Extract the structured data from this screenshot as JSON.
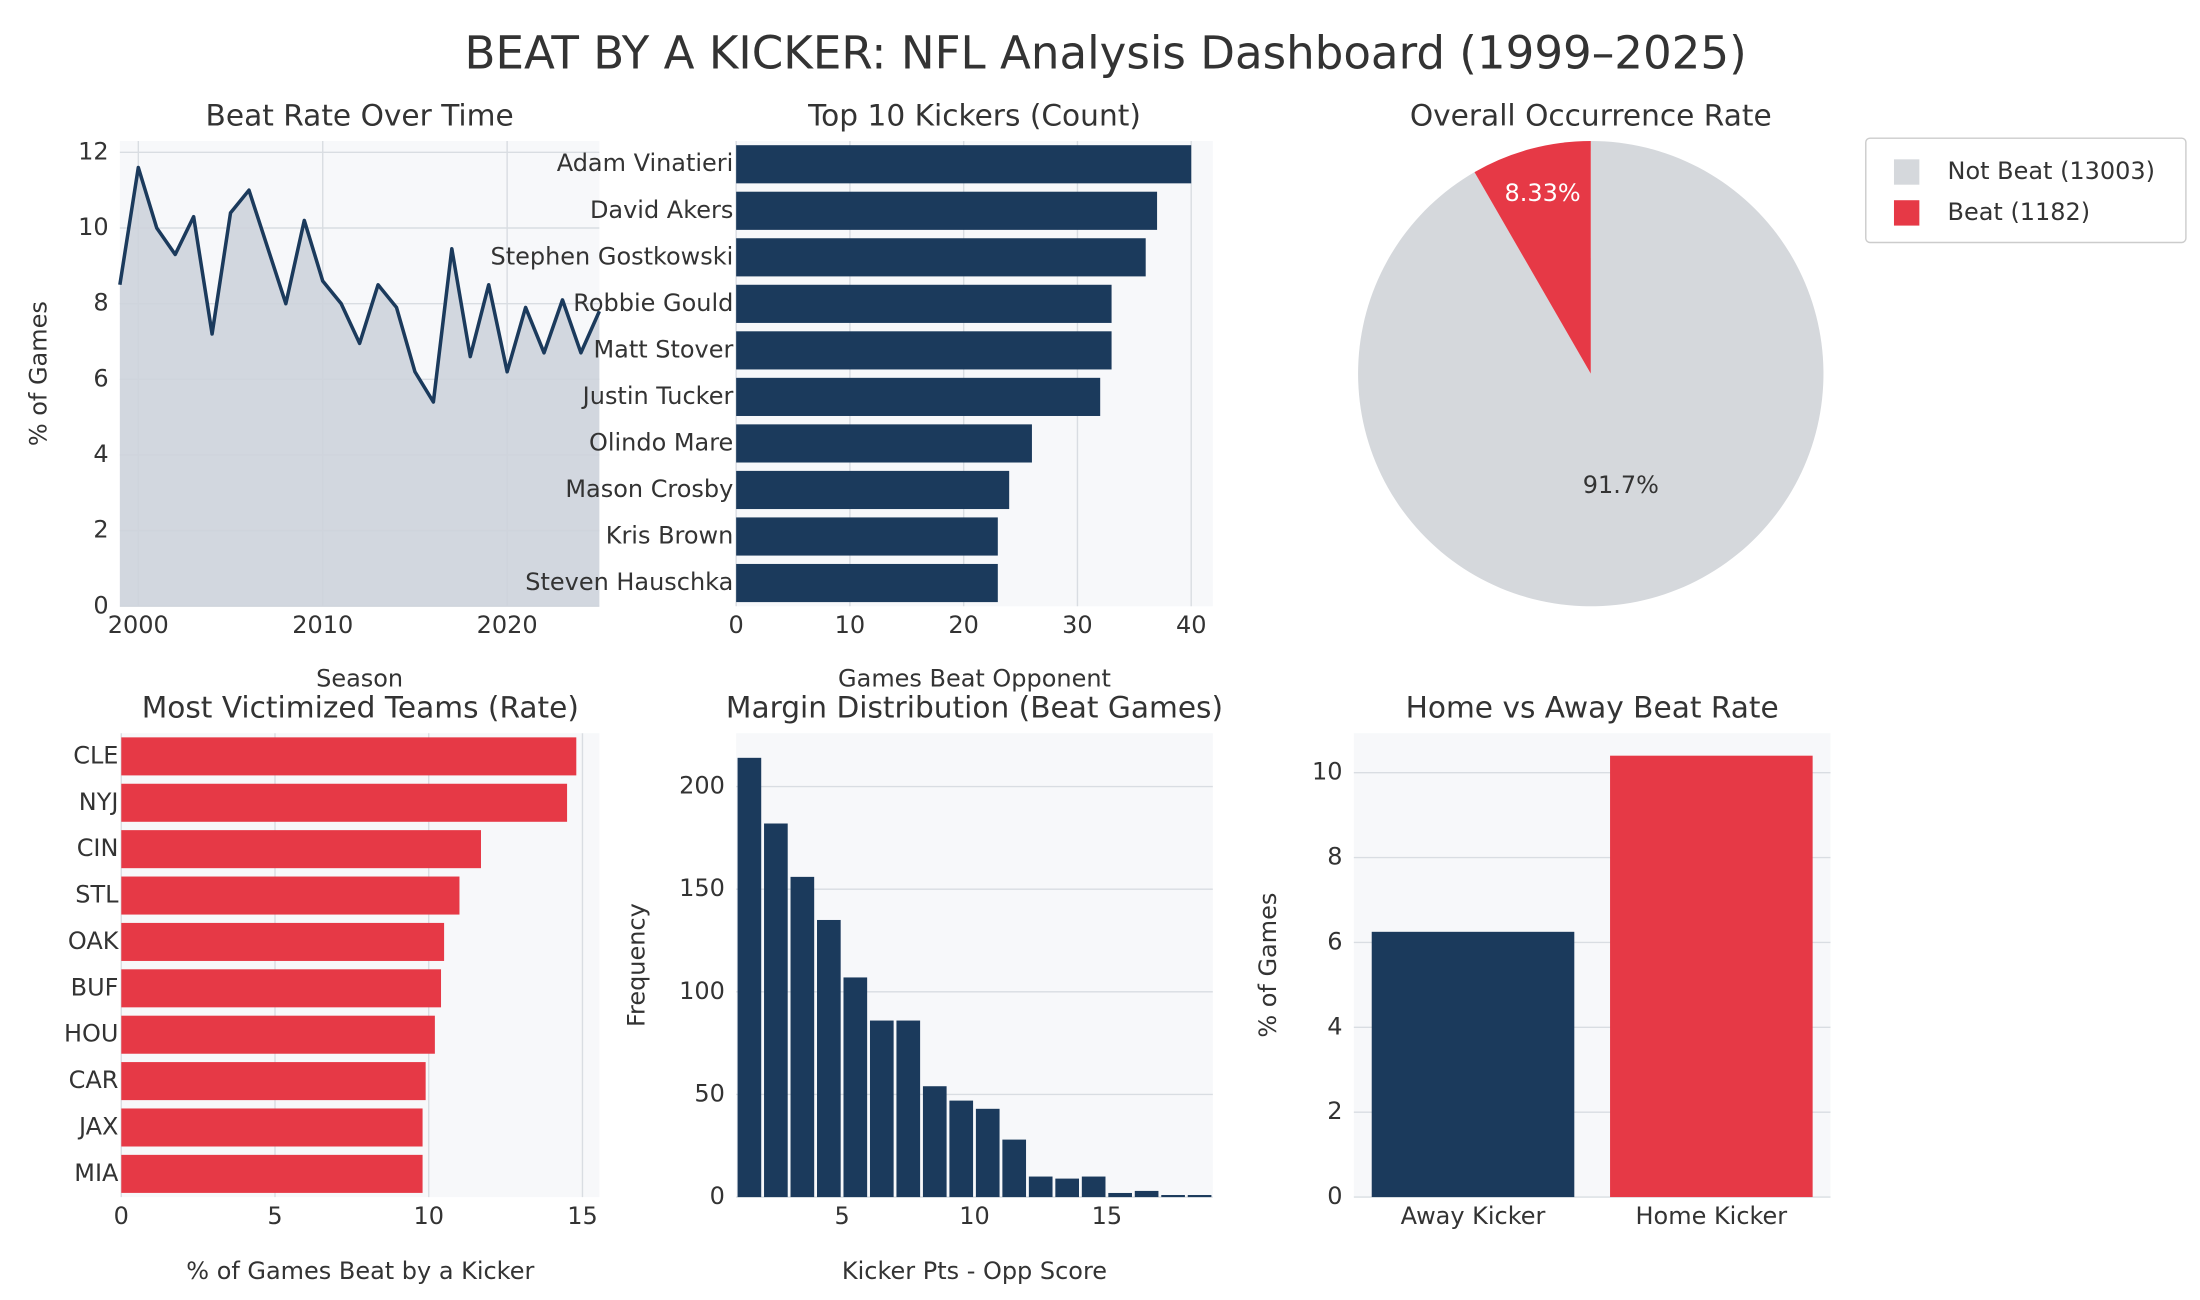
{
  "title": "BEAT BY A KICKER: NFL Analysis Dashboard (1999–2025)",
  "chart_data": [
    {
      "type": "line",
      "title": "Beat Rate Over Time",
      "xlabel": "Season",
      "ylabel": "% of Games",
      "x": [
        1999,
        2000,
        2001,
        2002,
        2003,
        2004,
        2005,
        2006,
        2007,
        2008,
        2009,
        2010,
        2011,
        2012,
        2013,
        2014,
        2015,
        2016,
        2017,
        2018,
        2019,
        2020,
        2021,
        2022,
        2023,
        2024,
        2025
      ],
      "values": [
        8.5,
        11.6,
        10.0,
        9.3,
        10.3,
        7.2,
        10.4,
        11.0,
        9.5,
        8.0,
        10.2,
        8.6,
        8.0,
        6.95,
        8.5,
        7.9,
        6.2,
        5.4,
        9.45,
        6.6,
        8.5,
        6.2,
        7.9,
        6.7,
        8.1,
        6.7,
        7.8
      ],
      "color": "#1b3a5c",
      "fill": "#cdd3db",
      "xlim": [
        1999,
        2025
      ],
      "xticks": [
        2000,
        2010,
        2020
      ],
      "ylim": [
        0,
        12.3
      ],
      "yticks": [
        0,
        2,
        4,
        6,
        8,
        10,
        12
      ],
      "grid": "both"
    },
    {
      "type": "bar",
      "orientation": "horizontal",
      "title": "Top 10 Kickers (Count)",
      "xlabel": "Games Beat Opponent",
      "categories": [
        "Adam Vinatieri",
        "David Akers",
        "Stephen Gostkowski",
        "Robbie Gould",
        "Matt Stover",
        "Justin Tucker",
        "Olindo Mare",
        "Mason Crosby",
        "Kris Brown",
        "Steven Hauschka"
      ],
      "values": [
        40,
        37,
        36,
        33,
        33,
        32,
        26,
        24,
        23,
        23
      ],
      "color": "#1b3a5c",
      "xlim": [
        0,
        41.9
      ],
      "xticks": [
        0,
        10,
        20,
        30,
        40
      ],
      "grid": "x"
    },
    {
      "type": "pie",
      "title": "Overall Occurrence Rate",
      "categories": [
        "Not Beat (13003)",
        "Beat (1182)"
      ],
      "values": [
        91.7,
        8.33
      ],
      "value_labels": [
        "91.7%",
        "8.33%"
      ],
      "colors": [
        "#d5d8dc",
        "#e63946"
      ],
      "legend": "upper-right"
    },
    {
      "type": "bar",
      "orientation": "horizontal",
      "title": "Most Victimized Teams (Rate)",
      "xlabel": "% of Games Beat by a Kicker",
      "categories": [
        "CLE",
        "NYJ",
        "CIN",
        "STL",
        "OAK",
        "BUF",
        "HOU",
        "CAR",
        "JAX",
        "MIA"
      ],
      "values": [
        14.8,
        14.5,
        11.7,
        11.0,
        10.5,
        10.4,
        10.2,
        9.9,
        9.8,
        9.8
      ],
      "color": "#e63946",
      "xlim": [
        0,
        15.55
      ],
      "xticks": [
        0,
        5,
        10,
        15
      ],
      "grid": "x"
    },
    {
      "type": "histogram",
      "title": "Margin Distribution (Beat Games)",
      "xlabel": "Kicker Pts - Opp Score",
      "ylabel": "Frequency",
      "bins": [
        1,
        2,
        3,
        4,
        5,
        6,
        7,
        8,
        9,
        10,
        11,
        12,
        13,
        14,
        15,
        16,
        17,
        18,
        19
      ],
      "values": [
        214,
        182,
        156,
        135,
        107,
        86,
        86,
        54,
        47,
        43,
        28,
        10,
        9,
        10,
        2,
        3,
        1,
        1
      ],
      "color": "#1b3a5c",
      "xlim": [
        1,
        19
      ],
      "xticks": [
        5,
        10,
        15
      ],
      "ylim": [
        0,
        226
      ],
      "yticks": [
        0,
        50,
        100,
        150,
        200
      ],
      "grid": "y"
    },
    {
      "type": "bar",
      "orientation": "vertical",
      "title": "Home vs Away Beat Rate",
      "ylabel": "% of Games",
      "categories": [
        "Away Kicker",
        "Home Kicker"
      ],
      "values": [
        6.25,
        10.4
      ],
      "colors": [
        "#1b3a5c",
        "#e63946"
      ],
      "ylim": [
        0,
        10.93
      ],
      "yticks": [
        0,
        2,
        4,
        6,
        8,
        10
      ],
      "grid": "y"
    }
  ]
}
